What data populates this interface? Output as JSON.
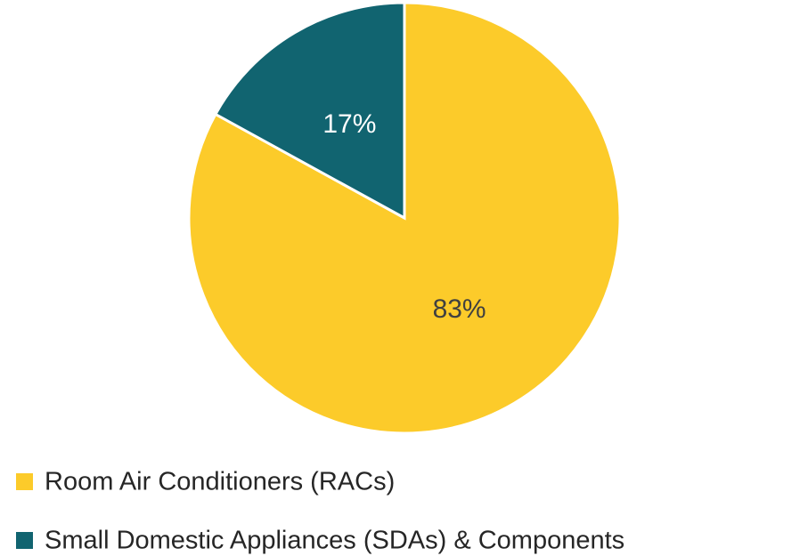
{
  "chart_data": {
    "type": "pie",
    "categories": [
      "Room Air Conditioners (RACs)",
      "Small Domestic Appliances (SDAs) & Components"
    ],
    "values": [
      83,
      17
    ],
    "value_labels": [
      "83%",
      "17%"
    ],
    "colors": [
      "#fccb2a",
      "#116470"
    ],
    "label_colors": [
      "#404040",
      "#ffffff"
    ],
    "legend": "bottom"
  }
}
